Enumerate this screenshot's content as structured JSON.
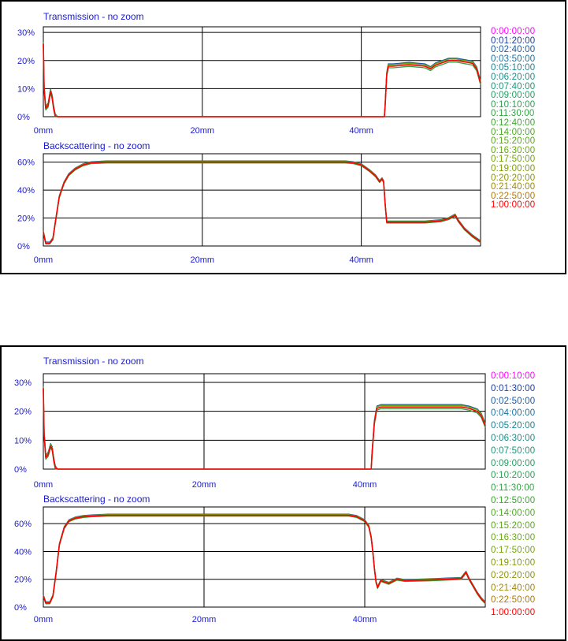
{
  "chart_data": [
    {
      "type": "line",
      "legend_position": "right",
      "subplots": [
        {
          "title": "Transmission - no zoom",
          "xlabel": "",
          "ylabel": "",
          "x_ticks": [
            "0mm",
            "20mm",
            "40mm"
          ],
          "y_ticks": [
            "0%",
            "10%",
            "20%",
            "30%"
          ],
          "xlim": [
            0,
            55
          ],
          "ylim": [
            0,
            32
          ],
          "unit": "%",
          "grid": true,
          "series_profile": {
            "x": [
              0,
              0.1,
              0.3,
              0.6,
              0.9,
              1.1,
              1.3,
              1.5,
              1.8,
              2.5,
              10,
              20,
              30,
              42.9,
              43.0,
              43.2,
              43.4,
              44,
              46,
              48,
              48.7,
              49.3,
              50,
              51,
              52,
              53,
              54,
              54.5,
              55
            ],
            "y": [
              26,
              10,
              3,
              4,
              9,
              7,
              3,
              0.2,
              0,
              0,
              0,
              0,
              0,
              0,
              4,
              15,
              18,
              18,
              18.5,
              18,
              17,
              18.3,
              19,
              20,
              20,
              19.5,
              19,
              17,
              12
            ]
          }
        },
        {
          "title": "Backscattering - no zoom",
          "xlabel": "",
          "ylabel": "",
          "x_ticks": [
            "0mm",
            "20mm",
            "40mm"
          ],
          "y_ticks": [
            "0%",
            "20%",
            "40%",
            "60%"
          ],
          "xlim": [
            0,
            55
          ],
          "ylim": [
            0,
            66
          ],
          "unit": "%",
          "grid": true,
          "series_profile": {
            "x": [
              0,
              0.3,
              0.8,
              1.2,
              1.6,
              2.0,
              2.6,
              3.2,
              4,
              5,
              6,
              8,
              10,
              20,
              30,
              38,
              39,
              40,
              41,
              41.8,
              42.3,
              42.6,
              42.8,
              43.0,
              43.2,
              45,
              48,
              50,
              51,
              51.8,
              52.2,
              53,
              54,
              55
            ],
            "y": [
              10,
              2,
              2,
              5,
              20,
              35,
              45,
              51,
              55,
              58,
              59.5,
              60,
              60,
              60,
              60,
              60,
              59.5,
              58,
              54,
              50,
              46,
              48,
              46,
              30,
              17,
              17,
              17,
              18,
              19.5,
              22,
              18,
              12,
              7,
              3
            ]
          }
        }
      ],
      "legend": [
        "0:00:00:00",
        "0:01:20:00",
        "0:02:40:00",
        "0:03:50:00",
        "0:05:10:00",
        "0:06:20:00",
        "0:07:40:00",
        "0:09:00:00",
        "0:10:10:00",
        "0:11:30:00",
        "0:12:40:00",
        "0:14:00:00",
        "0:15:20:00",
        "0:16:30:00",
        "0:17:50:00",
        "0:19:00:00",
        "0:20:20:00",
        "0:21:40:00",
        "0:22:50:00",
        "1:00:00:00"
      ],
      "legend_colors": [
        "#ff00ff",
        "#1c3ea8",
        "#1a5aa6",
        "#1a72a0",
        "#1a8496",
        "#1a8e86",
        "#1e9676",
        "#229c62",
        "#2aa050",
        "#30a440",
        "#3aa62e",
        "#4aaa22",
        "#58aa18",
        "#66aa10",
        "#74a40c",
        "#829c08",
        "#8e9406",
        "#a08804",
        "#b07804",
        "#ff0000"
      ]
    },
    {
      "type": "line",
      "legend_position": "right",
      "subplots": [
        {
          "title": "Transmission - no zoom",
          "xlabel": "",
          "ylabel": "",
          "x_ticks": [
            "0mm",
            "20mm",
            "40mm"
          ],
          "y_ticks": [
            "0%",
            "10%",
            "20%",
            "30%"
          ],
          "xlim": [
            0,
            55
          ],
          "ylim": [
            0,
            33
          ],
          "unit": "%",
          "grid": true,
          "series_profile": {
            "x": [
              0,
              0.1,
              0.3,
              0.6,
              0.9,
              1.1,
              1.3,
              1.5,
              1.8,
              2.5,
              10,
              20,
              30,
              40.8,
              40.9,
              41.2,
              41.5,
              42,
              45,
              50,
              52,
              53,
              54,
              54.5,
              55
            ],
            "y": [
              28,
              12,
              4,
              5,
              8,
              7,
              3,
              0.3,
              0,
              0,
              0,
              0,
              0,
              0,
              5,
              16,
              21,
              21.5,
              21.5,
              21.5,
              21.5,
              21,
              20,
              18.5,
              15
            ]
          }
        },
        {
          "title": "Backscattering - no zoom",
          "xlabel": "",
          "ylabel": "",
          "x_ticks": [
            "0mm",
            "20mm",
            "40mm"
          ],
          "y_ticks": [
            "0%",
            "20%",
            "40%",
            "60%"
          ],
          "xlim": [
            0,
            55
          ],
          "ylim": [
            0,
            72
          ],
          "unit": "%",
          "grid": true,
          "series_profile": {
            "x": [
              0,
              0.3,
              0.8,
              1.2,
              1.6,
              2.0,
              2.6,
              3.2,
              4,
              5,
              6,
              8,
              10,
              20,
              30,
              38,
              39,
              40,
              40.5,
              40.8,
              41.0,
              41.2,
              41.4,
              41.6,
              42,
              43,
              44,
              45,
              48,
              50,
              52,
              52.6,
              53,
              53.5,
              54,
              54.5,
              55
            ],
            "y": [
              8,
              3,
              3,
              8,
              25,
              45,
              57,
              62,
              64,
              65,
              65.5,
              66,
              66,
              66,
              66,
              66,
              65,
              62,
              58,
              50,
              40,
              28,
              18,
              14,
              19,
              17,
              20,
              19,
              19.5,
              20,
              20.5,
              25,
              20,
              15,
              10,
              6,
              3
            ]
          }
        }
      ],
      "legend": [
        "0:00:10:00",
        "0:01:30:00",
        "0:02:50:00",
        "0:04:00:00",
        "0:05:20:00",
        "0:06:30:00",
        "0:07:50:00",
        "0:09:00:00",
        "0:10:20:00",
        "0:11:30:00",
        "0:12:50:00",
        "0:14:00:00",
        "0:15:20:00",
        "0:16:30:00",
        "0:17:50:00",
        "0:19:10:00",
        "0:20:20:00",
        "0:21:40:00",
        "0:22:50:00",
        "1:00:00:00"
      ],
      "legend_colors": [
        "#ff00ff",
        "#1c3ea8",
        "#1a5aa6",
        "#1a72a0",
        "#1a8496",
        "#1a8e86",
        "#1e9676",
        "#229c62",
        "#2aa050",
        "#30a440",
        "#3aa62e",
        "#4aaa22",
        "#58aa18",
        "#66aa10",
        "#74a40c",
        "#829c08",
        "#8e9406",
        "#a08804",
        "#b07804",
        "#ff0000"
      ]
    }
  ],
  "colors": {
    "label_text": "#1a1ad0",
    "axis": "#000000",
    "curve_final": "#ff0000"
  }
}
